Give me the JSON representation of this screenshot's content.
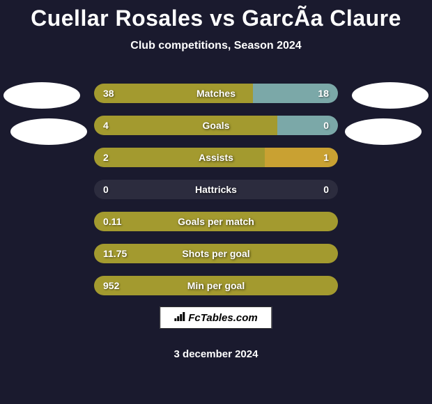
{
  "title": "Cuellar Rosales vs GarcÃ­a Claure",
  "subtitle": "Club competitions, Season 2024",
  "colors": {
    "background": "#1a1a2e",
    "bar_olive": "#a39a2f",
    "bar_dark": "#2c2c3e",
    "bar_teal": "#7ba8a8",
    "bar_gold": "#c9a132",
    "text": "#ffffff"
  },
  "stats": [
    {
      "name": "Matches",
      "left_value": "38",
      "right_value": "18",
      "left_width": 65,
      "right_width": 35,
      "left_color": "#a39a2f",
      "right_color": "#7ba8a8"
    },
    {
      "name": "Goals",
      "left_value": "4",
      "right_value": "0",
      "left_width": 75,
      "right_width": 25,
      "left_color": "#a39a2f",
      "right_color": "#7ba8a8"
    },
    {
      "name": "Assists",
      "left_value": "2",
      "right_value": "1",
      "left_width": 70,
      "right_width": 30,
      "left_color": "#a39a2f",
      "right_color": "#c9a132"
    },
    {
      "name": "Hattricks",
      "left_value": "0",
      "right_value": "0",
      "left_width": 100,
      "right_width": 0,
      "left_color": "#2c2c3e",
      "right_color": "#2c2c3e"
    },
    {
      "name": "Goals per match",
      "left_value": "0.11",
      "right_value": "",
      "left_width": 100,
      "right_width": 0,
      "left_color": "#a39a2f",
      "right_color": "#a39a2f"
    },
    {
      "name": "Shots per goal",
      "left_value": "11.75",
      "right_value": "",
      "left_width": 100,
      "right_width": 0,
      "left_color": "#a39a2f",
      "right_color": "#a39a2f"
    },
    {
      "name": "Min per goal",
      "left_value": "952",
      "right_value": "",
      "left_width": 100,
      "right_width": 0,
      "left_color": "#a39a2f",
      "right_color": "#a39a2f"
    }
  ],
  "watermark": "FcTables.com",
  "date": "3 december 2024"
}
